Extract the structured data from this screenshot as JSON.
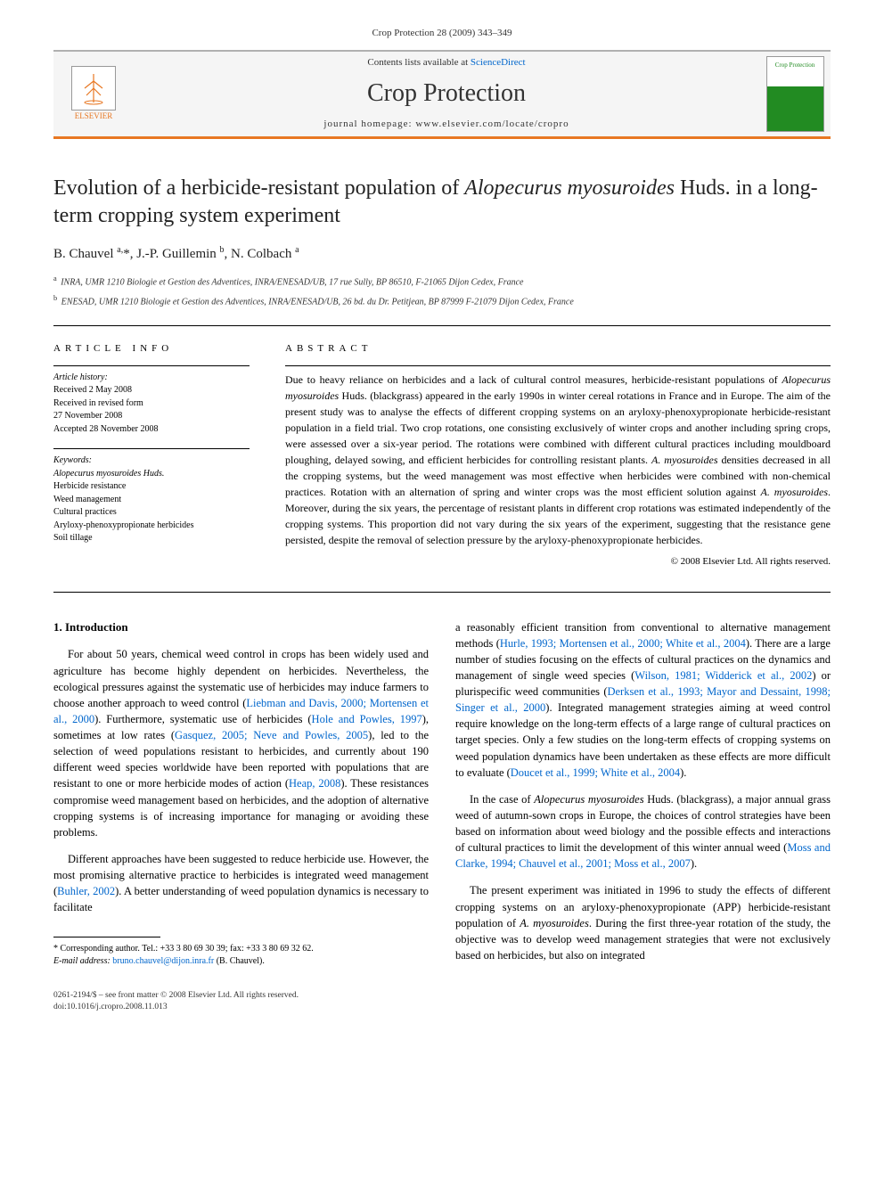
{
  "citation": "Crop Protection 28 (2009) 343–349",
  "banner": {
    "publisher": "ELSEVIER",
    "contents_prefix": "Contents lists available at ",
    "contents_link": "ScienceDirect",
    "journal": "Crop Protection",
    "homepage_prefix": "journal homepage: ",
    "homepage": "www.elsevier.com/locate/cropro",
    "cover_label": "Crop Protection"
  },
  "title_html": "Evolution of a herbicide-resistant population of <em>Alopecurus myosuroides</em> Huds. in a long-term cropping system experiment",
  "authors_html": "B. Chauvel <sup>a,</sup>*, J.-P. Guillemin <sup>b</sup>, N. Colbach <sup>a</sup>",
  "affiliations": [
    {
      "sup": "a",
      "text": "INRA, UMR 1210 Biologie et Gestion des Adventices, INRA/ENESAD/UB, 17 rue Sully, BP 86510, F-21065 Dijon Cedex, France"
    },
    {
      "sup": "b",
      "text": "ENESAD, UMR 1210 Biologie et Gestion des Adventices, INRA/ENESAD/UB, 26 bd. du Dr. Petitjean, BP 87999 F-21079 Dijon Cedex, France"
    }
  ],
  "article_info": {
    "heading": "ARTICLE INFO",
    "history_label": "Article history:",
    "history": [
      "Received 2 May 2008",
      "Received in revised form",
      "27 November 2008",
      "Accepted 28 November 2008"
    ],
    "keywords_label": "Keywords:",
    "keywords": [
      "Alopecurus myosuroides Huds.",
      "Herbicide resistance",
      "Weed management",
      "Cultural practices",
      "Aryloxy-phenoxypropionate herbicides",
      "Soil tillage"
    ]
  },
  "abstract": {
    "heading": "ABSTRACT",
    "text_html": "Due to heavy reliance on herbicides and a lack of cultural control measures, herbicide-resistant populations of <em>Alopecurus myosuroides</em> Huds. (blackgrass) appeared in the early 1990s in winter cereal rotations in France and in Europe. The aim of the present study was to analyse the effects of different cropping systems on an aryloxy-phenoxypropionate herbicide-resistant population in a field trial. Two crop rotations, one consisting exclusively of winter crops and another including spring crops, were assessed over a six-year period. The rotations were combined with different cultural practices including mouldboard ploughing, delayed sowing, and efficient herbicides for controlling resistant plants. <em>A. myosuroides</em> densities decreased in all the cropping systems, but the weed management was most effective when herbicides were combined with non-chemical practices. Rotation with an alternation of spring and winter crops was the most efficient solution against <em>A. myosuroides</em>. Moreover, during the six years, the percentage of resistant plants in different crop rotations was estimated independently of the cropping systems. This proportion did not vary during the six years of the experiment, suggesting that the resistance gene persisted, despite the removal of selection pressure by the aryloxy-phenoxypropionate herbicides.",
    "copyright": "© 2008 Elsevier Ltd. All rights reserved."
  },
  "intro": {
    "heading": "1. Introduction",
    "p1_html": "For about 50 years, chemical weed control in crops has been widely used and agriculture has become highly dependent on herbicides. Nevertheless, the ecological pressures against the systematic use of herbicides may induce farmers to choose another approach to weed control (<a href='#'>Liebman and Davis, 2000; Mortensen et al., 2000</a>). Furthermore, systematic use of herbicides (<a href='#'>Hole and Powles, 1997</a>), sometimes at low rates (<a href='#'>Gasquez, 2005; Neve and Powles, 2005</a>), led to the selection of weed populations resistant to herbicides, and currently about 190 different weed species worldwide have been reported with populations that are resistant to one or more herbicide modes of action (<a href='#'>Heap, 2008</a>). These resistances compromise weed management based on herbicides, and the adoption of alternative cropping systems is of increasing importance for managing or avoiding these problems.",
    "p2_html": "Different approaches have been suggested to reduce herbicide use. However, the most promising alternative practice to herbicides is integrated weed management (<a href='#'>Buhler, 2002</a>). A better understanding of weed population dynamics is necessary to facilitate",
    "p3_html": "a reasonably efficient transition from conventional to alternative management methods (<a href='#'>Hurle, 1993; Mortensen et al., 2000; White et al., 2004</a>). There are a large number of studies focusing on the effects of cultural practices on the dynamics and management of single weed species (<a href='#'>Wilson, 1981; Widderick et al., 2002</a>) or plurispecific weed communities (<a href='#'>Derksen et al., 1993; Mayor and Dessaint, 1998; Singer et al., 2000</a>). Integrated management strategies aiming at weed control require knowledge on the long-term effects of a large range of cultural practices on target species. Only a few studies on the long-term effects of cropping systems on weed population dynamics have been undertaken as these effects are more difficult to evaluate (<a href='#'>Doucet et al., 1999; White et al., 2004</a>).",
    "p4_html": "In the case of <em>Alopecurus myosuroides</em> Huds. (blackgrass), a major annual grass weed of autumn-sown crops in Europe, the choices of control strategies have been based on information about weed biology and the possible effects and interactions of cultural practices to limit the development of this winter annual weed (<a href='#'>Moss and Clarke, 1994; Chauvel et al., 2001; Moss et al., 2007</a>).",
    "p5_html": "The present experiment was initiated in 1996 to study the effects of different cropping systems on an aryloxy-phenoxypropionate (APP) herbicide-resistant population of <em>A. myosuroides</em>. During the first three-year rotation of the study, the objective was to develop weed management strategies that were not exclusively based on herbicides, but also on integrated"
  },
  "footnote": {
    "corresponding_html": "* Corresponding author. Tel.: +33 3 80 69 30 39; fax: +33 3 80 69 32 62.",
    "email_label": "E-mail address:",
    "email": "bruno.chauvel@dijon.inra.fr",
    "email_suffix": "(B. Chauvel)."
  },
  "footer": {
    "line1": "0261-2194/$ – see front matter © 2008 Elsevier Ltd. All rights reserved.",
    "line2": "doi:10.1016/j.cropro.2008.11.013"
  },
  "colors": {
    "accent_orange": "#e87722",
    "link_blue": "#0066cc",
    "cover_green": "#228b22"
  }
}
